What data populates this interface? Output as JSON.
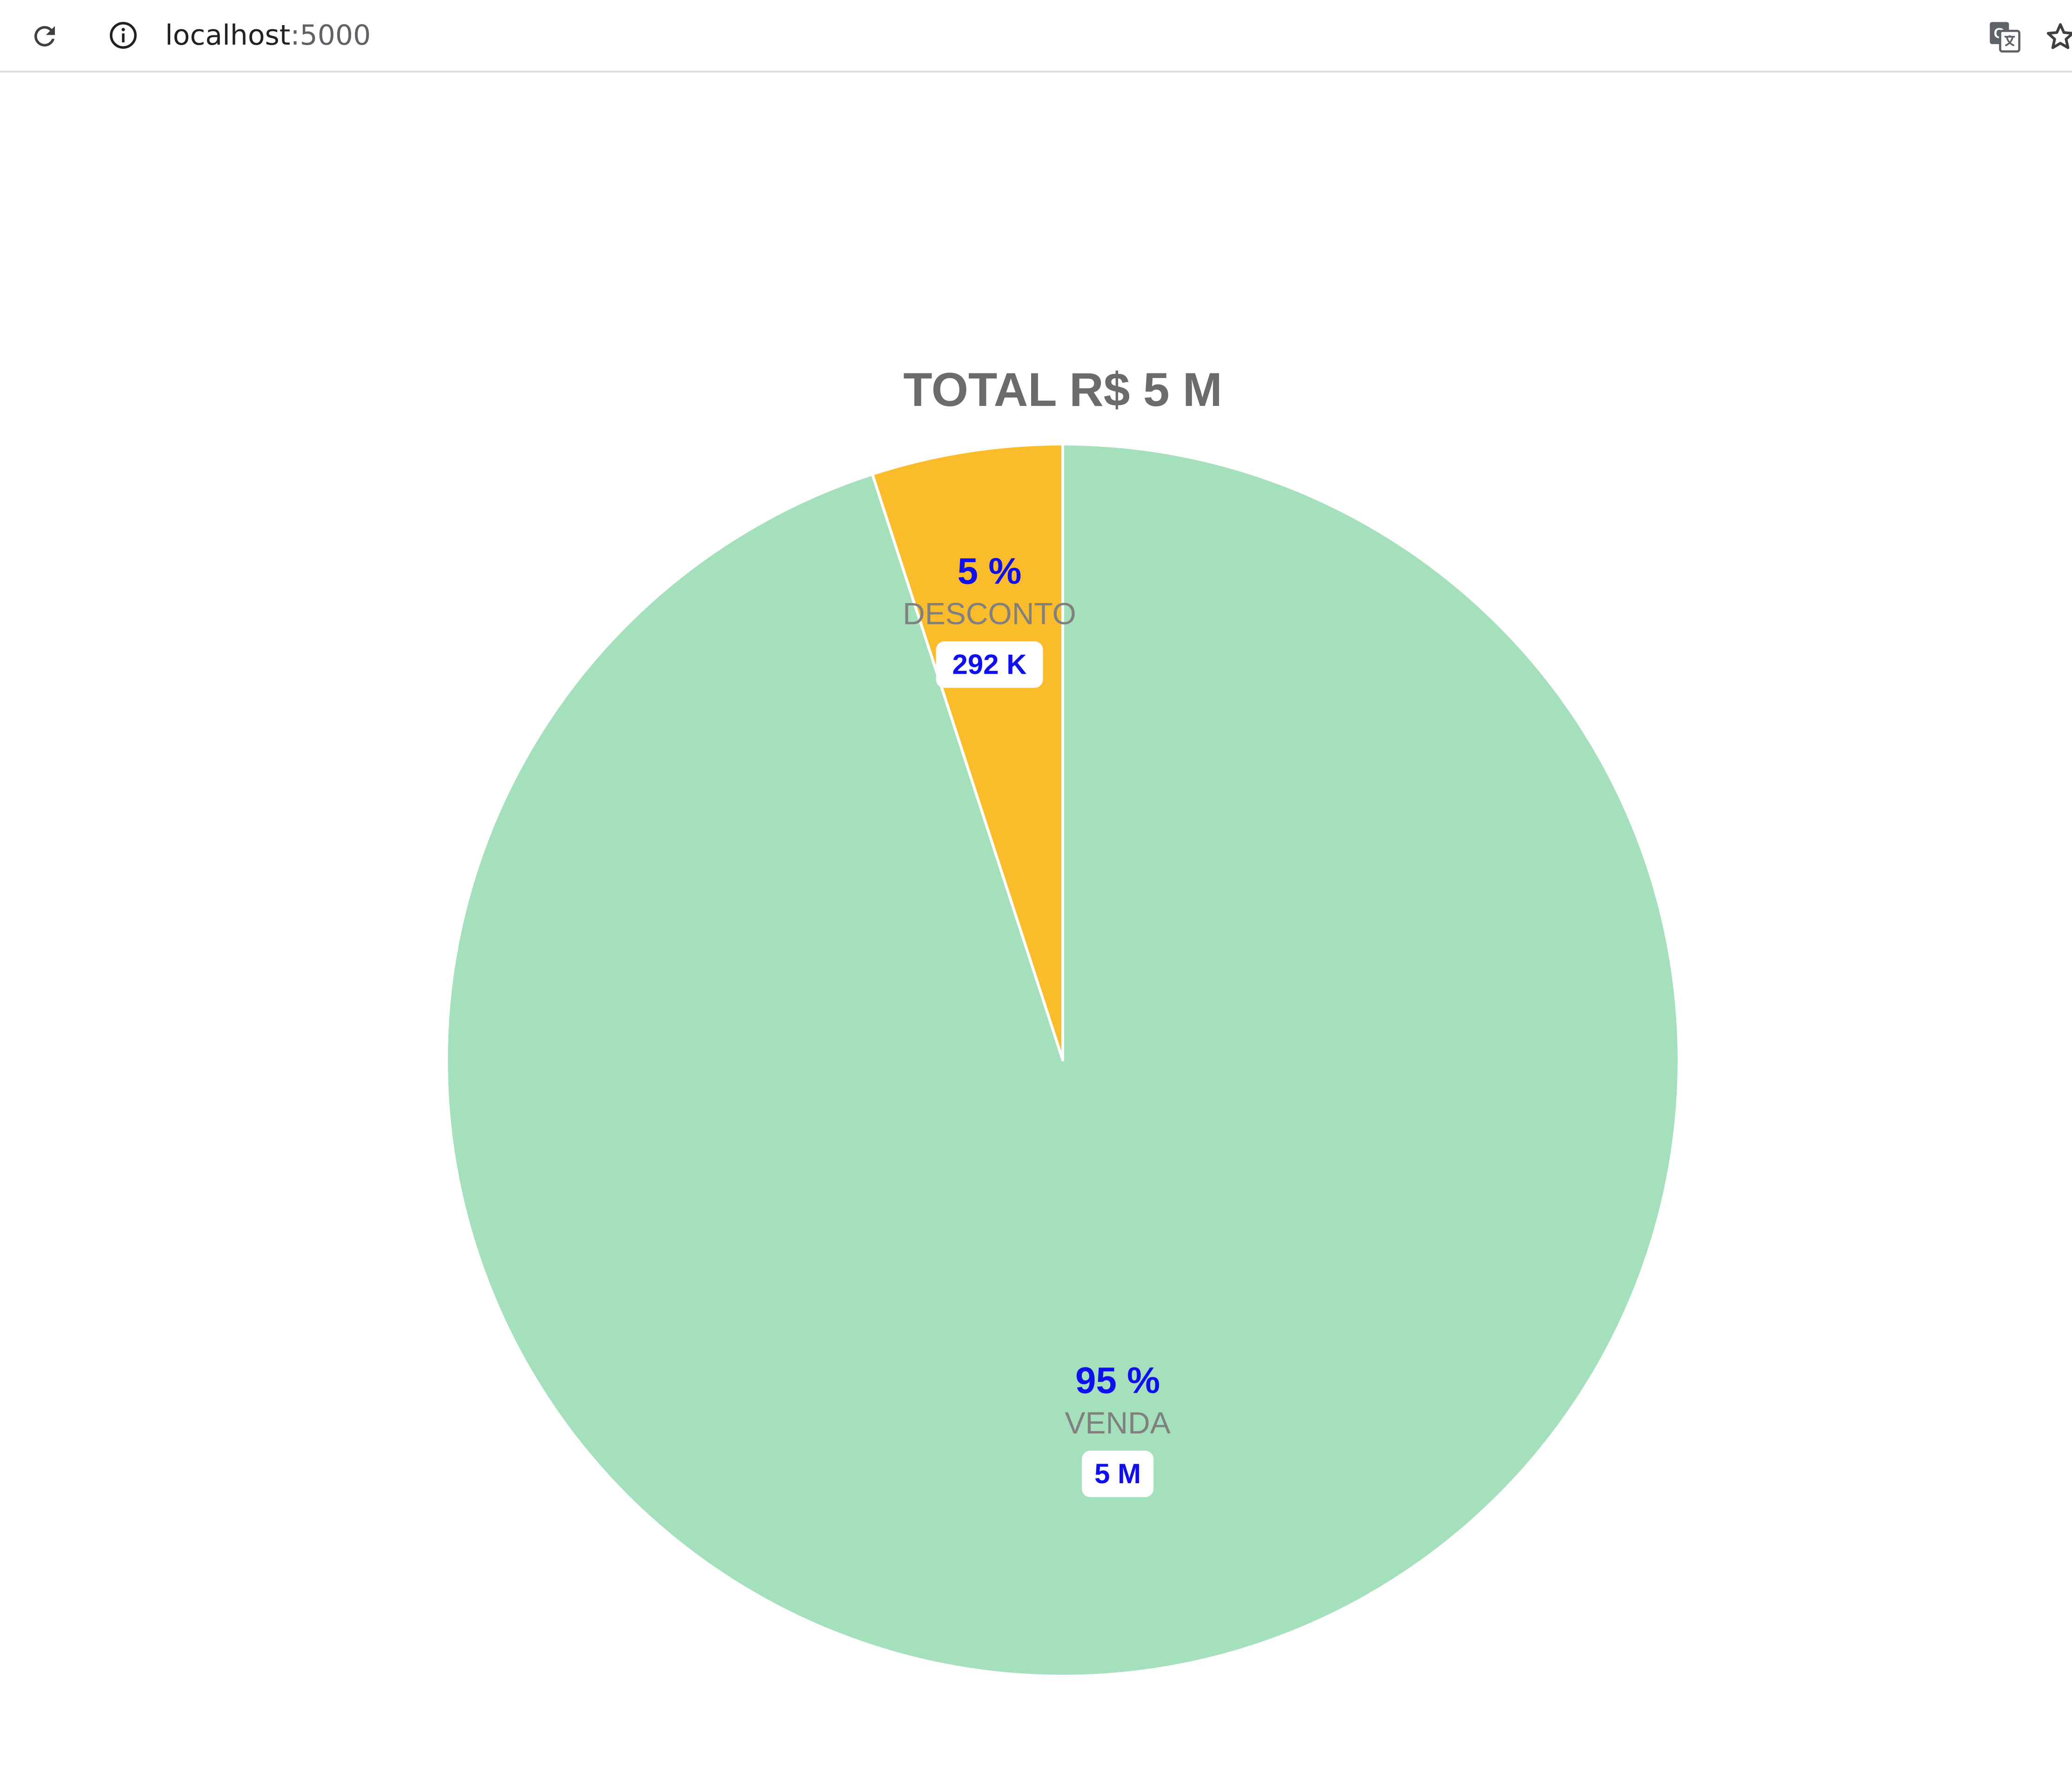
{
  "browser": {
    "url_host": "localhost",
    "url_port": ":5000",
    "icons": {
      "reload": "reload-icon",
      "info": "info-icon",
      "translate": "translate-icon",
      "bookmark": "star-icon"
    }
  },
  "chart_data": {
    "type": "pie",
    "title": "TOTAL R$ 5 M",
    "start_angle_deg": 0,
    "direction": "counterclockwise",
    "slices": [
      {
        "label": "DESCONTO",
        "percent_label": "5 %",
        "value_label": "292 K",
        "value": 292,
        "percent": 5,
        "color": "#fbbc2b"
      },
      {
        "label": "VENDA",
        "percent_label": "95 %",
        "value_label": "5 M",
        "value": 5000,
        "percent": 95,
        "color": "#a5e0bc"
      }
    ],
    "colors": {
      "title": "#6b6b6b",
      "percent_text": "#1010ee",
      "category_text": "#808080",
      "value_text": "#1010ee",
      "slice_border": "#ffffff"
    }
  }
}
